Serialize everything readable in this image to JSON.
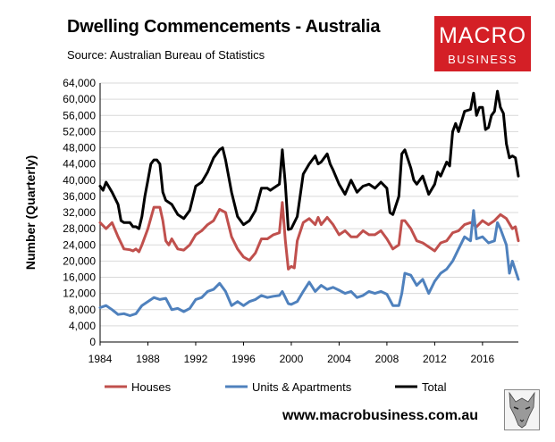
{
  "header": {
    "title": "Dwelling Commencements - Australia",
    "source": "Source: Australian Bureau of Statistics"
  },
  "logo": {
    "line1": "MACRO",
    "line2": "BUSINESS",
    "color": "#d41f26"
  },
  "footer": {
    "website": "www.macrobusiness.com.au"
  },
  "chart_data": {
    "type": "line",
    "title": "Dwelling Commencements - Australia",
    "ylabel": "Number (Quarterly)",
    "xlabel": "",
    "ylim": [
      0,
      64000
    ],
    "xlim": [
      1984,
      2019
    ],
    "yticks": [
      "0",
      "4,000",
      "8,000",
      "12,000",
      "16,000",
      "20,000",
      "24,000",
      "28,000",
      "32,000",
      "36,000",
      "40,000",
      "44,000",
      "48,000",
      "52,000",
      "56,000",
      "60,000",
      "64,000"
    ],
    "xticks": [
      "1984",
      "1988",
      "1992",
      "1996",
      "2000",
      "2004",
      "2008",
      "2012",
      "2016"
    ],
    "grid": "horizontal",
    "legend": "bottom",
    "series": [
      {
        "name": "Houses",
        "color": "#c0504d",
        "points": [
          [
            1984.0,
            29500
          ],
          [
            1984.5,
            28000
          ],
          [
            1985.0,
            29500
          ],
          [
            1985.5,
            26000
          ],
          [
            1986.0,
            23000
          ],
          [
            1986.5,
            22800
          ],
          [
            1986.75,
            22500
          ],
          [
            1987.0,
            23000
          ],
          [
            1987.25,
            22300
          ],
          [
            1987.5,
            24000
          ],
          [
            1988.0,
            28000
          ],
          [
            1988.5,
            33300
          ],
          [
            1989.0,
            33300
          ],
          [
            1989.25,
            30000
          ],
          [
            1989.5,
            25000
          ],
          [
            1989.75,
            24000
          ],
          [
            1990.0,
            25500
          ],
          [
            1990.5,
            23000
          ],
          [
            1991.0,
            22700
          ],
          [
            1991.5,
            24000
          ],
          [
            1992.0,
            26500
          ],
          [
            1992.5,
            27500
          ],
          [
            1993.0,
            29000
          ],
          [
            1993.5,
            30000
          ],
          [
            1994.0,
            32800
          ],
          [
            1994.5,
            32000
          ],
          [
            1995.0,
            26000
          ],
          [
            1995.5,
            23000
          ],
          [
            1996.0,
            21000
          ],
          [
            1996.5,
            20200
          ],
          [
            1997.0,
            22000
          ],
          [
            1997.5,
            25500
          ],
          [
            1998.0,
            25500
          ],
          [
            1998.5,
            26500
          ],
          [
            1999.0,
            27000
          ],
          [
            1999.25,
            34500
          ],
          [
            1999.5,
            25000
          ],
          [
            1999.75,
            18000
          ],
          [
            2000.0,
            18700
          ],
          [
            2000.25,
            18300
          ],
          [
            2000.5,
            25000
          ],
          [
            2001.0,
            29500
          ],
          [
            2001.5,
            30500
          ],
          [
            2002.0,
            29000
          ],
          [
            2002.25,
            30800
          ],
          [
            2002.5,
            29000
          ],
          [
            2003.0,
            30800
          ],
          [
            2003.5,
            29000
          ],
          [
            2004.0,
            26500
          ],
          [
            2004.5,
            27500
          ],
          [
            2005.0,
            26000
          ],
          [
            2005.5,
            26000
          ],
          [
            2006.0,
            27500
          ],
          [
            2006.5,
            26500
          ],
          [
            2007.0,
            26500
          ],
          [
            2007.5,
            27500
          ],
          [
            2008.0,
            25500
          ],
          [
            2008.5,
            23000
          ],
          [
            2009.0,
            24000
          ],
          [
            2009.25,
            30000
          ],
          [
            2009.5,
            30000
          ],
          [
            2010.0,
            28000
          ],
          [
            2010.5,
            25000
          ],
          [
            2011.0,
            24500
          ],
          [
            2011.5,
            23500
          ],
          [
            2012.0,
            22500
          ],
          [
            2012.5,
            24500
          ],
          [
            2013.0,
            25000
          ],
          [
            2013.5,
            27000
          ],
          [
            2014.0,
            27500
          ],
          [
            2014.5,
            29000
          ],
          [
            2015.0,
            29500
          ],
          [
            2015.5,
            28500
          ],
          [
            2016.0,
            30000
          ],
          [
            2016.5,
            29000
          ],
          [
            2017.0,
            30000
          ],
          [
            2017.5,
            31500
          ],
          [
            2018.0,
            30500
          ],
          [
            2018.5,
            28000
          ],
          [
            2018.75,
            28500
          ],
          [
            2019.0,
            25000
          ]
        ]
      },
      {
        "name": "Units & Apartments",
        "color": "#4f81bd",
        "points": [
          [
            1984.0,
            8500
          ],
          [
            1984.5,
            9000
          ],
          [
            1985.0,
            8000
          ],
          [
            1985.5,
            6800
          ],
          [
            1986.0,
            7000
          ],
          [
            1986.5,
            6500
          ],
          [
            1987.0,
            7000
          ],
          [
            1987.5,
            9000
          ],
          [
            1988.0,
            10000
          ],
          [
            1988.5,
            11000
          ],
          [
            1989.0,
            10500
          ],
          [
            1989.5,
            10800
          ],
          [
            1990.0,
            8000
          ],
          [
            1990.5,
            8300
          ],
          [
            1991.0,
            7500
          ],
          [
            1991.5,
            8300
          ],
          [
            1992.0,
            10500
          ],
          [
            1992.5,
            11000
          ],
          [
            1993.0,
            12500
          ],
          [
            1993.5,
            13000
          ],
          [
            1994.0,
            14500
          ],
          [
            1994.5,
            12500
          ],
          [
            1995.0,
            9000
          ],
          [
            1995.5,
            10000
          ],
          [
            1996.0,
            9000
          ],
          [
            1996.5,
            10000
          ],
          [
            1997.0,
            10500
          ],
          [
            1997.5,
            11500
          ],
          [
            1998.0,
            11000
          ],
          [
            1998.5,
            11300
          ],
          [
            1999.0,
            11500
          ],
          [
            1999.25,
            12500
          ],
          [
            1999.5,
            11000
          ],
          [
            1999.75,
            9500
          ],
          [
            2000.0,
            9300
          ],
          [
            2000.5,
            10000
          ],
          [
            2001.0,
            12500
          ],
          [
            2001.5,
            14800
          ],
          [
            2002.0,
            12500
          ],
          [
            2002.5,
            14000
          ],
          [
            2003.0,
            13000
          ],
          [
            2003.5,
            13500
          ],
          [
            2004.0,
            12800
          ],
          [
            2004.5,
            12000
          ],
          [
            2005.0,
            12500
          ],
          [
            2005.5,
            11000
          ],
          [
            2006.0,
            11500
          ],
          [
            2006.5,
            12500
          ],
          [
            2007.0,
            12000
          ],
          [
            2007.5,
            12500
          ],
          [
            2008.0,
            11800
          ],
          [
            2008.5,
            9000
          ],
          [
            2009.0,
            9000
          ],
          [
            2009.25,
            12000
          ],
          [
            2009.5,
            17000
          ],
          [
            2010.0,
            16500
          ],
          [
            2010.5,
            14000
          ],
          [
            2011.0,
            15500
          ],
          [
            2011.5,
            12000
          ],
          [
            2012.0,
            15000
          ],
          [
            2012.5,
            17000
          ],
          [
            2013.0,
            18000
          ],
          [
            2013.5,
            20000
          ],
          [
            2014.0,
            23000
          ],
          [
            2014.5,
            26000
          ],
          [
            2015.0,
            25000
          ],
          [
            2015.25,
            32500
          ],
          [
            2015.5,
            25500
          ],
          [
            2016.0,
            26000
          ],
          [
            2016.5,
            24500
          ],
          [
            2017.0,
            25000
          ],
          [
            2017.25,
            29500
          ],
          [
            2017.5,
            28000
          ],
          [
            2018.0,
            24000
          ],
          [
            2018.25,
            17000
          ],
          [
            2018.5,
            20000
          ],
          [
            2019.0,
            15500
          ]
        ]
      },
      {
        "name": "Total",
        "color": "#000000",
        "points": [
          [
            1984.0,
            38500
          ],
          [
            1984.25,
            37500
          ],
          [
            1984.5,
            39500
          ],
          [
            1985.0,
            37000
          ],
          [
            1985.5,
            34000
          ],
          [
            1985.75,
            30000
          ],
          [
            1986.0,
            29500
          ],
          [
            1986.5,
            29500
          ],
          [
            1986.75,
            28500
          ],
          [
            1987.0,
            28500
          ],
          [
            1987.25,
            28000
          ],
          [
            1987.5,
            31000
          ],
          [
            1987.75,
            36000
          ],
          [
            1988.0,
            40000
          ],
          [
            1988.25,
            44000
          ],
          [
            1988.5,
            45000
          ],
          [
            1988.75,
            45000
          ],
          [
            1989.0,
            44000
          ],
          [
            1989.25,
            37000
          ],
          [
            1989.5,
            35000
          ],
          [
            1990.0,
            34000
          ],
          [
            1990.5,
            31500
          ],
          [
            1991.0,
            30500
          ],
          [
            1991.5,
            32500
          ],
          [
            1992.0,
            38500
          ],
          [
            1992.5,
            39500
          ],
          [
            1993.0,
            42000
          ],
          [
            1993.5,
            45500
          ],
          [
            1994.0,
            47500
          ],
          [
            1994.25,
            48000
          ],
          [
            1994.5,
            45000
          ],
          [
            1995.0,
            37000
          ],
          [
            1995.5,
            31000
          ],
          [
            1996.0,
            29000
          ],
          [
            1996.5,
            30000
          ],
          [
            1997.0,
            32500
          ],
          [
            1997.5,
            38000
          ],
          [
            1998.0,
            38000
          ],
          [
            1998.25,
            37500
          ],
          [
            1998.5,
            38000
          ],
          [
            1999.0,
            39000
          ],
          [
            1999.25,
            47500
          ],
          [
            1999.5,
            39000
          ],
          [
            1999.75,
            27800
          ],
          [
            2000.0,
            28000
          ],
          [
            2000.5,
            31000
          ],
          [
            2001.0,
            41500
          ],
          [
            2001.5,
            44000
          ],
          [
            2002.0,
            46000
          ],
          [
            2002.25,
            44000
          ],
          [
            2002.5,
            44500
          ],
          [
            2003.0,
            46500
          ],
          [
            2003.25,
            44000
          ],
          [
            2003.5,
            42500
          ],
          [
            2004.0,
            39000
          ],
          [
            2004.5,
            36500
          ],
          [
            2005.0,
            40000
          ],
          [
            2005.5,
            37000
          ],
          [
            2006.0,
            38500
          ],
          [
            2006.5,
            39000
          ],
          [
            2007.0,
            38000
          ],
          [
            2007.5,
            39500
          ],
          [
            2008.0,
            38000
          ],
          [
            2008.25,
            32000
          ],
          [
            2008.5,
            31500
          ],
          [
            2009.0,
            36000
          ],
          [
            2009.25,
            46500
          ],
          [
            2009.5,
            47500
          ],
          [
            2010.0,
            43000
          ],
          [
            2010.25,
            40000
          ],
          [
            2010.5,
            39000
          ],
          [
            2011.0,
            41000
          ],
          [
            2011.5,
            36500
          ],
          [
            2012.0,
            39000
          ],
          [
            2012.25,
            42000
          ],
          [
            2012.5,
            41000
          ],
          [
            2013.0,
            44500
          ],
          [
            2013.25,
            43500
          ],
          [
            2013.5,
            52000
          ],
          [
            2013.75,
            54000
          ],
          [
            2014.0,
            52000
          ],
          [
            2014.5,
            57000
          ],
          [
            2015.0,
            57500
          ],
          [
            2015.25,
            61500
          ],
          [
            2015.5,
            56000
          ],
          [
            2015.75,
            58000
          ],
          [
            2016.0,
            58000
          ],
          [
            2016.25,
            52500
          ],
          [
            2016.5,
            53000
          ],
          [
            2016.75,
            56000
          ],
          [
            2017.0,
            57000
          ],
          [
            2017.25,
            62000
          ],
          [
            2017.5,
            58000
          ],
          [
            2017.75,
            56500
          ],
          [
            2018.0,
            49000
          ],
          [
            2018.25,
            45500
          ],
          [
            2018.5,
            46000
          ],
          [
            2018.75,
            45500
          ],
          [
            2019.0,
            41000
          ]
        ]
      }
    ]
  }
}
